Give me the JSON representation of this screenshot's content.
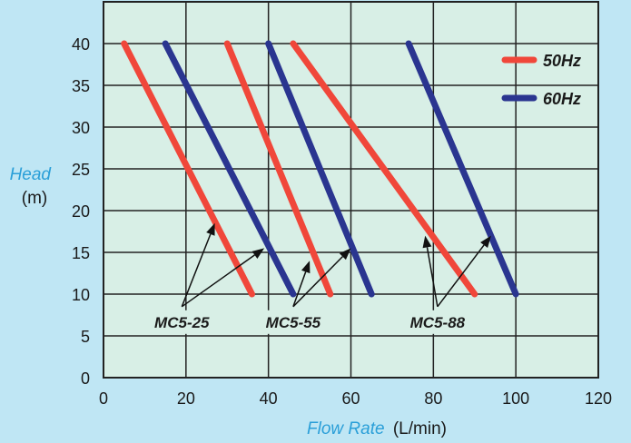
{
  "chart_data": {
    "type": "line",
    "title": "",
    "xlabel": "Flow Rate",
    "xlabel_unit": "(L/min)",
    "ylabel": "Head",
    "ylabel_unit": "(m)",
    "xlim": [
      0,
      120
    ],
    "ylim": [
      0,
      45
    ],
    "x_ticks": [
      0,
      20,
      40,
      60,
      80,
      100,
      120
    ],
    "y_ticks": [
      0,
      5,
      10,
      15,
      20,
      25,
      30,
      35,
      40
    ],
    "grid": true,
    "legend_position": "top-right",
    "legend": [
      {
        "label": "50Hz",
        "color": "#f0473a"
      },
      {
        "label": "60Hz",
        "color": "#2a3590"
      }
    ],
    "series": [
      {
        "model": "MC5-25",
        "freq": "50Hz",
        "color": "#f0473a",
        "points": [
          [
            5,
            40
          ],
          [
            36,
            10
          ]
        ]
      },
      {
        "model": "MC5-25",
        "freq": "60Hz",
        "color": "#2a3590",
        "points": [
          [
            15,
            40
          ],
          [
            46,
            10
          ]
        ]
      },
      {
        "model": "MC5-55",
        "freq": "50Hz",
        "color": "#f0473a",
        "points": [
          [
            30,
            40
          ],
          [
            55,
            10
          ]
        ]
      },
      {
        "model": "MC5-55",
        "freq": "60Hz",
        "color": "#2a3590",
        "points": [
          [
            40,
            40
          ],
          [
            65,
            10
          ]
        ]
      },
      {
        "model": "MC5-88",
        "freq": "50Hz",
        "color": "#f0473a",
        "points": [
          [
            46,
            40
          ],
          [
            90,
            10
          ]
        ]
      },
      {
        "model": "MC5-88",
        "freq": "60Hz",
        "color": "#2a3590",
        "points": [
          [
            74,
            40
          ],
          [
            100,
            10
          ]
        ]
      }
    ],
    "annotations": [
      {
        "text": "MC5-25",
        "anchor": [
          19,
          8.5
        ],
        "arrows_to": [
          [
            27,
            18.5
          ],
          [
            39,
            15.5
          ]
        ]
      },
      {
        "text": "MC5-55",
        "anchor": [
          46,
          8.5
        ],
        "arrows_to": [
          [
            50,
            14
          ],
          [
            60,
            15.5
          ]
        ]
      },
      {
        "text": "MC5-88",
        "anchor": [
          81,
          8.5
        ],
        "arrows_to": [
          [
            78,
            17
          ],
          [
            94,
            17
          ]
        ]
      }
    ]
  }
}
